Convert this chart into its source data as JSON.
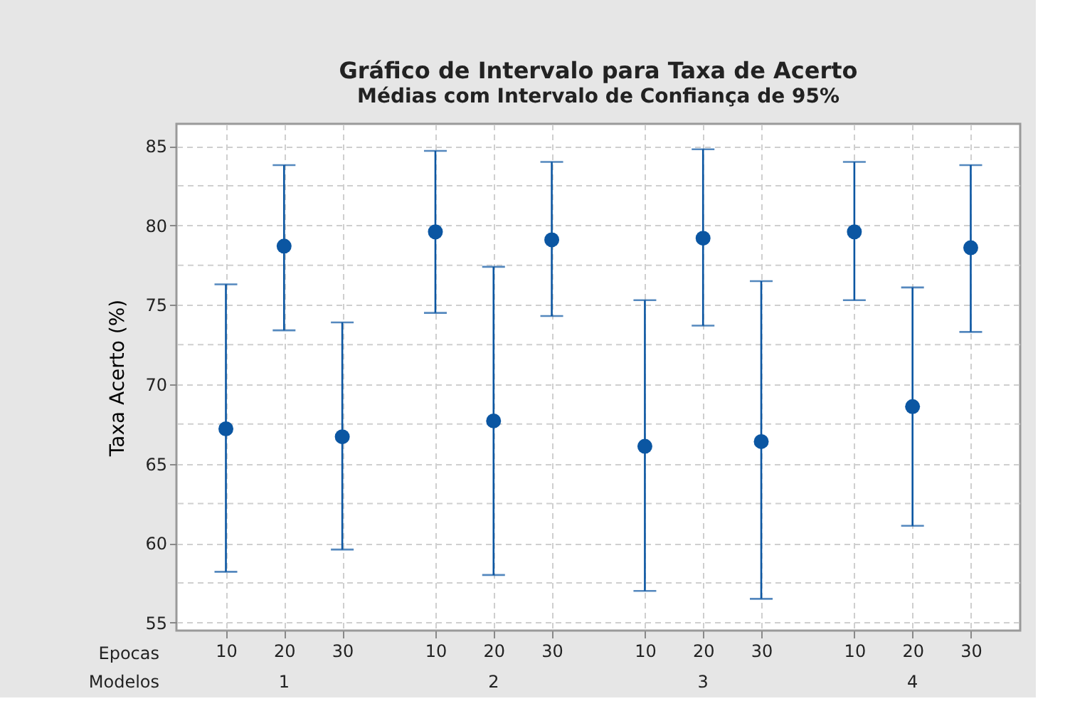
{
  "chart_data": {
    "type": "scatter",
    "title": "Gráfico de Intervalo para Taxa de Acerto",
    "subtitle": "Médias com Intervalo de Confiança de 95%",
    "ylabel": "Taxa Acerto (%)",
    "categories": [
      "10",
      "20",
      "30",
      "10",
      "20",
      "30",
      "10",
      "20",
      "30",
      "10",
      "20",
      "30"
    ],
    "series": [
      {
        "color": "#0b56a2",
        "values": [
          67.2,
          78.7,
          66.7,
          79.6,
          67.7,
          79.1,
          66.1,
          79.2,
          66.4,
          79.6,
          68.6,
          78.6
        ],
        "errors": [
          [
            58.2,
            76.3
          ],
          [
            73.4,
            83.8
          ],
          [
            59.6,
            73.9
          ],
          [
            74.5,
            84.7
          ],
          [
            58.0,
            77.4
          ],
          [
            74.3,
            84.0
          ],
          [
            57.0,
            75.3
          ],
          [
            73.7,
            84.8
          ],
          [
            56.5,
            76.5
          ],
          [
            75.3,
            84.0
          ],
          [
            61.1,
            76.1
          ],
          [
            73.3,
            83.8
          ]
        ]
      }
    ],
    "annotations": [
      "Epocas",
      "Modelos",
      "1",
      "2",
      "3",
      "4"
    ],
    "ylim": [
      54.5,
      86.4
    ],
    "yticks": [
      55,
      {
        "value": 57.5,
        "label": null
      },
      60,
      {
        "value": 62.5,
        "label": null
      },
      65,
      {
        "value": 67.5,
        "label": null
      },
      70,
      {
        "value": 72.5,
        "label": null
      },
      75,
      {
        "value": 77.5,
        "label": null
      },
      80,
      {
        "value": 82.5,
        "label": null
      },
      85
    ],
    "grid": true,
    "marker": "circle"
  }
}
